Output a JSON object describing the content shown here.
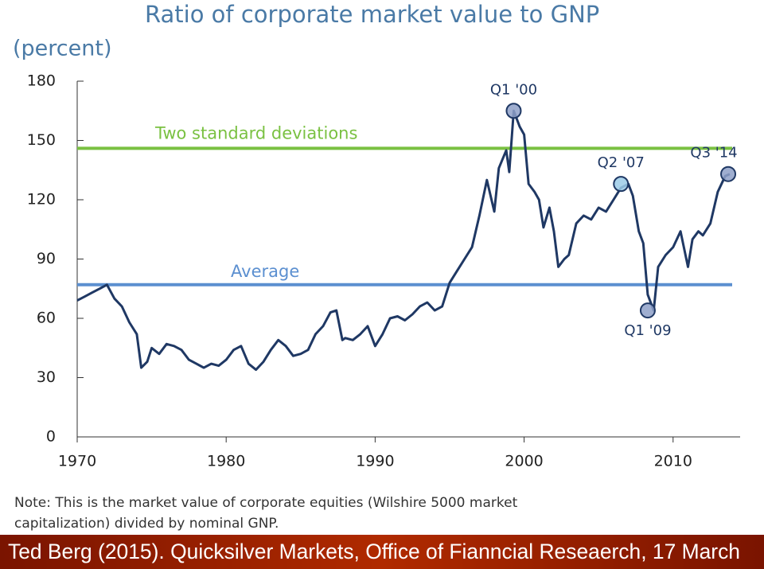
{
  "chart_data": {
    "type": "line",
    "title": "Ratio of corporate market value to GNP",
    "ylabel": "(percent)",
    "x": [
      1970,
      1970.5,
      1971,
      1971.5,
      1972,
      1972.5,
      1973,
      1973.5,
      1974,
      1974.3,
      1974.7,
      1975,
      1975.5,
      1976,
      1976.5,
      1977,
      1977.5,
      1978,
      1978.5,
      1979,
      1979.5,
      1980,
      1980.5,
      1981,
      1981.5,
      1982,
      1982.5,
      1983,
      1983.5,
      1984,
      1984.5,
      1985,
      1985.5,
      1986,
      1986.5,
      1987,
      1987.4,
      1987.8,
      1988,
      1988.5,
      1989,
      1989.5,
      1990,
      1990.5,
      1991,
      1991.5,
      1992,
      1992.5,
      1993,
      1993.5,
      1994,
      1994.5,
      1995,
      1995.5,
      1996,
      1996.5,
      1997,
      1997.5,
      1998,
      1998.3,
      1998.8,
      1999,
      1999.3,
      1999.7,
      2000,
      2000.3,
      2000.7,
      2001,
      2001.3,
      2001.7,
      2002,
      2002.3,
      2002.7,
      2003,
      2003.5,
      2004,
      2004.5,
      2005,
      2005.5,
      2006,
      2006.5,
      2007,
      2007.3,
      2007.7,
      2008,
      2008.3,
      2008.7,
      2009,
      2009.5,
      2010,
      2010.5,
      2011,
      2011.3,
      2011.7,
      2012,
      2012.5,
      2013,
      2013.5,
      2013.8
    ],
    "series": [
      {
        "name": "Ratio",
        "color": "#1f3864",
        "values": [
          69,
          71,
          73,
          75,
          77,
          70,
          66,
          58,
          52,
          35,
          38,
          45,
          42,
          47,
          46,
          44,
          39,
          37,
          35,
          37,
          36,
          39,
          44,
          46,
          37,
          34,
          38,
          44,
          49,
          46,
          41,
          42,
          44,
          52,
          56,
          63,
          64,
          49,
          50,
          49,
          52,
          56,
          46,
          52,
          60,
          61,
          59,
          62,
          66,
          68,
          64,
          66,
          78,
          84,
          90,
          96,
          112,
          130,
          114,
          136,
          145,
          134,
          165,
          157,
          153,
          128,
          124,
          120,
          106,
          116,
          104,
          86,
          90,
          92,
          108,
          112,
          110,
          116,
          114,
          120,
          126,
          128,
          122,
          104,
          98,
          72,
          64,
          86,
          92,
          96,
          104,
          86,
          100,
          104,
          102,
          108,
          124,
          132,
          133
        ]
      }
    ],
    "reference_lines": [
      {
        "label": "Two standard deviations",
        "value": 146,
        "color": "#7ac142"
      },
      {
        "label": "Average",
        "value": 77,
        "color": "#5b8fd0"
      }
    ],
    "annotations": [
      {
        "label": "Q1 '00",
        "x": 1999.3,
        "y": 165
      },
      {
        "label": "Q2 '07",
        "x": 2006.5,
        "y": 128
      },
      {
        "label": "Q1 '09",
        "x": 2008.3,
        "y": 64
      },
      {
        "label": "Q3 '14",
        "x": 2013.7,
        "y": 133
      }
    ],
    "xlim": [
      1970,
      2014.5
    ],
    "ylim": [
      0,
      180
    ],
    "xticks": [
      1970,
      1980,
      1990,
      2000,
      2010
    ],
    "yticks": [
      0,
      30,
      60,
      90,
      120,
      150,
      180
    ],
    "note": [
      "Note: This is the market value of corporate equities (Wilshire 5000 market",
      "capitalization) divided by nominal GNP."
    ],
    "footer": "Ted Berg (2015). Quicksilver Markets, Office of Fianncial Reseaerch, 17 March"
  }
}
